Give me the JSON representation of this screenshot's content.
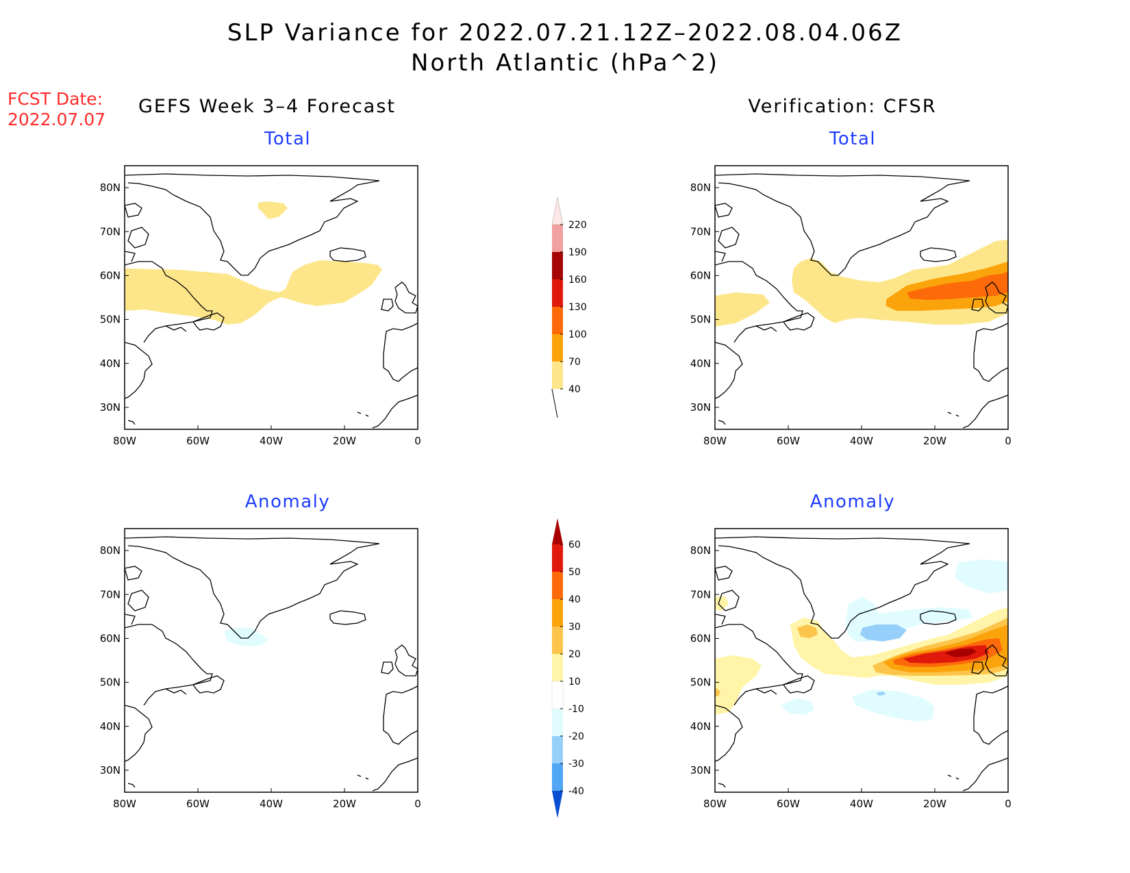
{
  "title": {
    "line1": "SLP Variance for 2022.07.21.12Z–2022.08.04.06Z",
    "line2": "North Atlantic (hPa^2)"
  },
  "fcst_date": {
    "label": "FCST Date:",
    "value": "2022.07.07"
  },
  "columns": {
    "left": "GEFS Week 3–4 Forecast",
    "right": "Verification: CFSR"
  },
  "panel_titles": {
    "total": "Total",
    "anomaly": "Anomaly"
  },
  "map": {
    "lon_ticks": [
      "80W",
      "60W",
      "40W",
      "20W",
      "0"
    ],
    "lat_ticks": [
      "80N",
      "70N",
      "60N",
      "50N",
      "40N",
      "30N"
    ],
    "lon_range": [
      -80,
      0
    ],
    "lat_range": [
      25,
      85
    ]
  },
  "colorbars": {
    "total": {
      "levels": [
        "40",
        "70",
        "100",
        "130",
        "160",
        "190",
        "220"
      ],
      "colors": [
        "#fde68a",
        "#fba30a",
        "#fc6a0a",
        "#e0190c",
        "#a50505",
        "#f0a0a0",
        "#fce8e6"
      ]
    },
    "anomaly": {
      "levels": [
        "60",
        "50",
        "40",
        "30",
        "20",
        "10",
        "-10",
        "-20",
        "-30",
        "-40"
      ],
      "colors": [
        "#a80000",
        "#e0190c",
        "#fc6a0a",
        "#fba30a",
        "#fcc44a",
        "#fff4a8",
        "#ffffff",
        "#e0fcff",
        "#96d0fa",
        "#50a5f5",
        "#1e6ee6",
        "#0a50d2"
      ]
    }
  }
}
